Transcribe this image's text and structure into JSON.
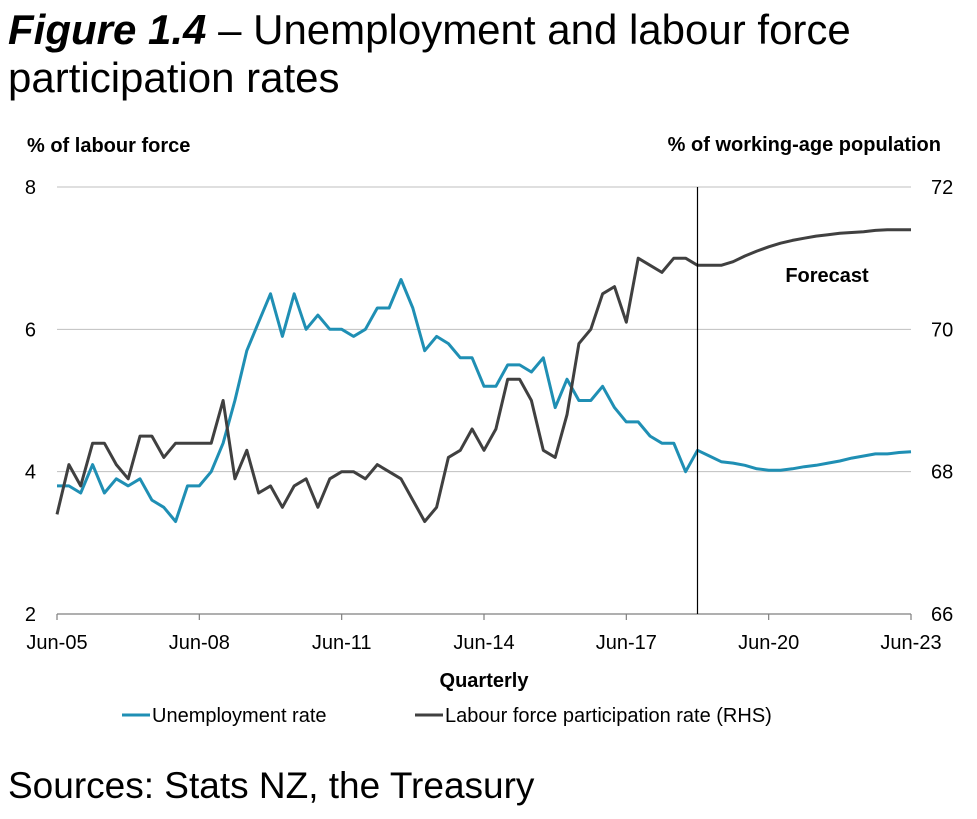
{
  "figure": {
    "label": "Figure 1.4",
    "dash": " – ",
    "title": "Unemployment and labour force participation rates"
  },
  "sources": "Sources: Stats NZ, the Treasury",
  "colors": {
    "unemployment": "#1f8fb4",
    "participation": "#404040",
    "grid": "#bfbfbf",
    "axis": "#7f7f7f"
  },
  "chart_data": {
    "type": "line",
    "title": "Unemployment and labour force participation rates",
    "xlabel": "Quarterly",
    "ylabel_left": "% of labour force",
    "ylabel_right": "% of working-age population",
    "ylim_left": [
      2,
      8
    ],
    "ylim_right": [
      66,
      72
    ],
    "yticks_left": [
      "2",
      "4",
      "6",
      "8"
    ],
    "yticks_right": [
      "66",
      "68",
      "70",
      "72"
    ],
    "xticks": [
      "Jun-05",
      "Jun-08",
      "Jun-11",
      "Jun-14",
      "Jun-17",
      "Jun-20",
      "Jun-23"
    ],
    "x_start": "Jun-05",
    "x_end": "Jun-23",
    "forecast_start": "Dec-18",
    "forecast_label": "Forecast",
    "grid": true,
    "legend_position": "bottom",
    "series": [
      {
        "name": "Unemployment rate",
        "axis": "left",
        "values": [
          3.8,
          3.8,
          3.7,
          4.1,
          3.7,
          3.9,
          3.8,
          3.9,
          3.6,
          3.5,
          3.3,
          3.8,
          3.8,
          4.0,
          4.4,
          5.0,
          5.7,
          6.1,
          6.5,
          5.9,
          6.5,
          6.0,
          6.2,
          6.0,
          6.0,
          5.9,
          6.0,
          6.3,
          6.3,
          6.7,
          6.3,
          5.7,
          5.9,
          5.8,
          5.6,
          5.6,
          5.2,
          5.2,
          5.5,
          5.5,
          5.4,
          5.6,
          4.9,
          5.3,
          5.0,
          5.0,
          5.2,
          4.9,
          4.7,
          4.7,
          4.5,
          4.4,
          4.4,
          4.0,
          4.3,
          4.22,
          4.14,
          4.12,
          4.09,
          4.04,
          4.02,
          4.02,
          4.04,
          4.07,
          4.09,
          4.12,
          4.15,
          4.19,
          4.22,
          4.25,
          4.25,
          4.27,
          4.28
        ]
      },
      {
        "name": "Labour force participation rate (RHS)",
        "axis": "right",
        "values": [
          67.4,
          68.1,
          67.8,
          68.4,
          68.4,
          68.1,
          67.9,
          68.5,
          68.5,
          68.2,
          68.4,
          68.4,
          68.4,
          68.4,
          69.0,
          67.9,
          68.3,
          67.7,
          67.8,
          67.5,
          67.8,
          67.9,
          67.5,
          67.9,
          68.0,
          68.0,
          67.9,
          68.1,
          68.0,
          67.9,
          67.6,
          67.3,
          67.5,
          68.2,
          68.3,
          68.6,
          68.3,
          68.6,
          69.3,
          69.3,
          69.0,
          68.3,
          68.2,
          68.8,
          69.8,
          70.0,
          70.5,
          70.6,
          70.1,
          71.0,
          70.9,
          70.8,
          71.0,
          71.0,
          70.9,
          70.9,
          70.9,
          70.95,
          71.03,
          71.1,
          71.16,
          71.21,
          71.25,
          71.28,
          71.31,
          71.33,
          71.35,
          71.36,
          71.37,
          71.39,
          71.4,
          71.4,
          71.4
        ]
      }
    ]
  }
}
